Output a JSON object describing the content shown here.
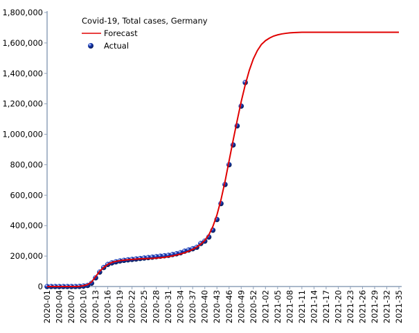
{
  "chart_data": {
    "type": "line",
    "title": "Covid-19, Total cases, Germany",
    "categories": [
      "2020-01",
      null,
      null,
      "2020-04",
      null,
      null,
      "2020-07",
      null,
      null,
      "2020-10",
      null,
      null,
      "2020-13",
      null,
      null,
      "2020-16",
      null,
      null,
      "2020-19",
      null,
      null,
      "2020-22",
      null,
      null,
      "2020-25",
      null,
      null,
      "2020-28",
      null,
      null,
      "2020-31",
      null,
      null,
      "2020-34",
      null,
      null,
      "2020-37",
      null,
      null,
      "2020-40",
      null,
      null,
      "2020-43",
      null,
      null,
      "2020-46",
      null,
      null,
      "2020-49",
      null,
      null,
      "2020-52",
      null,
      null,
      "2021-02",
      null,
      null,
      "2021-05",
      null,
      null,
      "2021-08",
      null,
      null,
      "2021-11",
      null,
      null,
      "2021-14",
      null,
      null,
      "2021-17",
      null,
      null,
      "2021-20",
      null,
      null,
      "2021-23",
      null,
      null,
      "2021-26",
      null,
      null,
      "2021-29",
      null,
      null,
      "2021-32",
      null,
      null,
      "2021-35"
    ],
    "series": [
      {
        "name": "Forecast",
        "color": "#e00000",
        "style": "line",
        "values": [
          0,
          0,
          0,
          0,
          0,
          0,
          0,
          0,
          1000,
          5000,
          12000,
          30000,
          65000,
          100000,
          125000,
          145000,
          158000,
          165000,
          170000,
          173000,
          176000,
          178000,
          180000,
          182000,
          183000,
          184000,
          185000,
          187000,
          189000,
          192000,
          196000,
          201000,
          207000,
          214000,
          222000,
          232000,
          244000,
          259000,
          278000,
          303000,
          340000,
          395000,
          470000,
          570000,
          690000,
          825000,
          960000,
          1090000,
          1215000,
          1325000,
          1420000,
          1495000,
          1550000,
          1590000,
          1615000,
          1632000,
          1645000,
          1653000,
          1659000,
          1663000,
          1666000,
          1668000,
          1669000,
          1670000,
          1670000,
          1670000,
          1670000,
          1670000,
          1670000,
          1670000,
          1670000,
          1670000,
          1670000,
          1670000,
          1670000,
          1670000,
          1670000,
          1670000,
          1670000,
          1670000,
          1670000,
          1670000,
          1670000,
          1670000,
          1670000,
          1670000,
          1670000,
          1670000
        ]
      },
      {
        "name": "Actual",
        "color": "#1a3fc0",
        "style": "markers",
        "values": [
          0,
          0,
          0,
          0,
          0,
          0,
          0,
          0,
          1000,
          3000,
          7000,
          22000,
          57000,
          95000,
          125000,
          145000,
          155000,
          162000,
          168000,
          172000,
          175000,
          178000,
          181000,
          184000,
          187000,
          190000,
          193000,
          196000,
          199000,
          202000,
          205000,
          210000,
          215000,
          222000,
          232000,
          240000,
          248000,
          258000,
          283000,
          298000,
          325000,
          370000,
          440000,
          545000,
          670000,
          800000,
          930000,
          1055000,
          1185000,
          1340000,
          null,
          null,
          null,
          null,
          null,
          null,
          null,
          null,
          null,
          null,
          null,
          null,
          null,
          null,
          null,
          null,
          null,
          null,
          null,
          null,
          null,
          null,
          null,
          null,
          null,
          null,
          null,
          null,
          null,
          null,
          null,
          null,
          null,
          null,
          null,
          null,
          null,
          null
        ]
      }
    ],
    "ylim": [
      0,
      1800000
    ],
    "yticks": [
      0,
      {
        "value": 200000,
        "label": "200,000"
      },
      {
        "value": 400000,
        "label": "400,000"
      },
      {
        "value": 600000,
        "label": "600,000"
      },
      {
        "value": 800000,
        "label": "800,000"
      },
      {
        "value": 1000000,
        "label": "1,000,000"
      },
      {
        "value": 1200000,
        "label": "1,200,000"
      },
      {
        "value": 1400000,
        "label": "1,400,000"
      },
      {
        "value": 1600000,
        "label": "1,600,000"
      },
      {
        "value": 1800000,
        "label": "1,800,000"
      }
    ],
    "grid": false
  }
}
